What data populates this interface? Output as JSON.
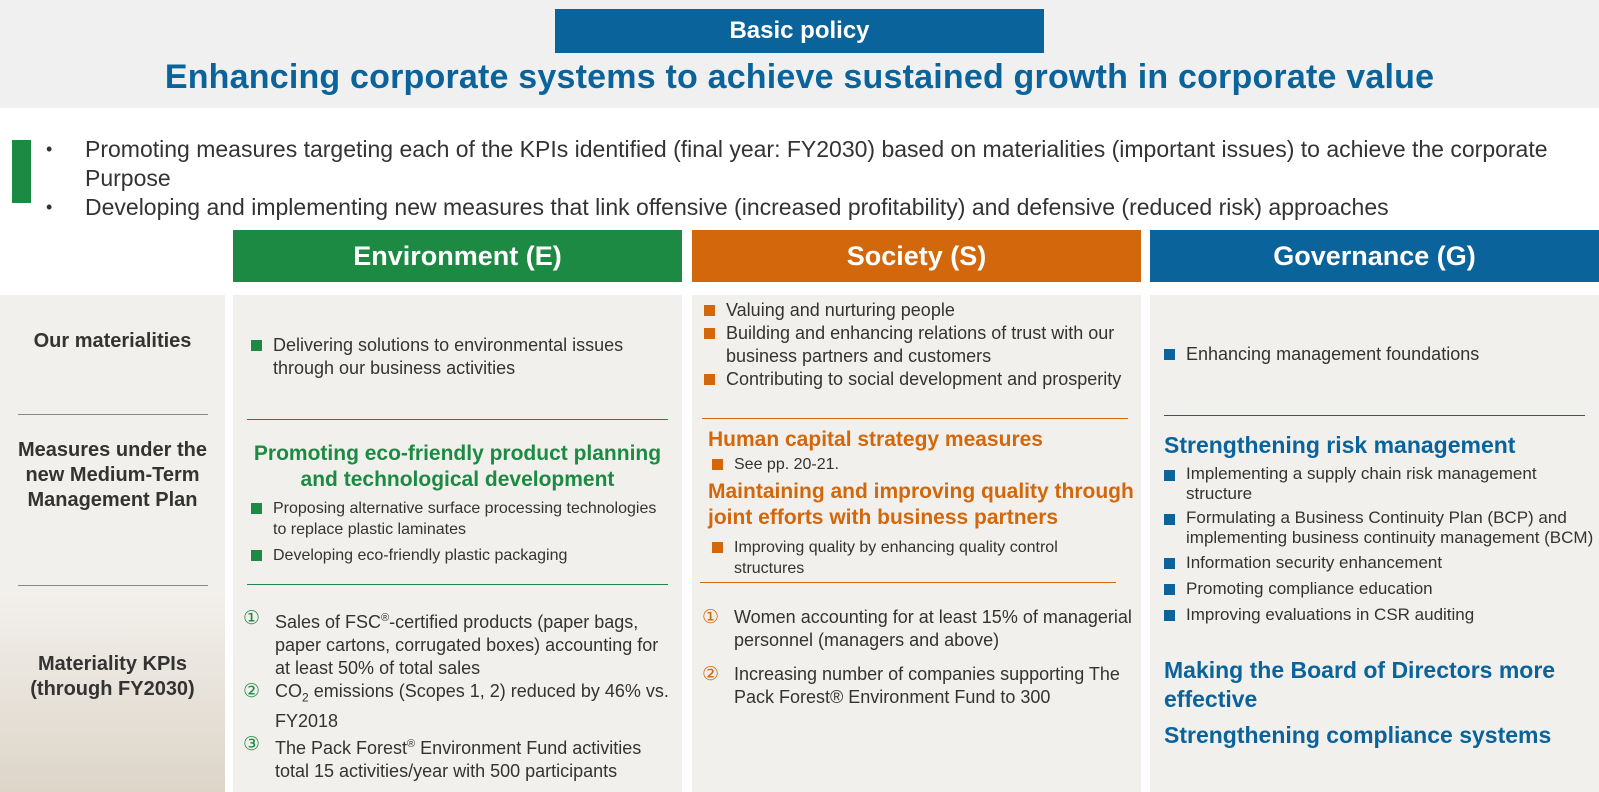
{
  "header": {
    "policy_label": "Basic policy",
    "title": "Enhancing corporate systems to achieve sustained growth in corporate value"
  },
  "intro": {
    "bullet_char": "•",
    "items": [
      "Promoting measures targeting each of the KPIs identified (final year: FY2030) based on materialities (important issues) to achieve the corporate Purpose",
      "Developing and implementing new measures that link offensive (increased profitability) and defensive (reduced risk) approaches"
    ]
  },
  "columns": {
    "environment": "Environment (E)",
    "society": "Society (S)",
    "governance": "Governance (G)"
  },
  "row_labels": {
    "materialities": "Our materialities",
    "measures": "Measures under the new Medium-Term Management Plan",
    "kpis": "Materiality KPIs (through FY2030)"
  },
  "environment": {
    "materialities": [
      "Delivering solutions to environmental issues through our business activities"
    ],
    "measures_heading": "Promoting eco-friendly product planning and technological development",
    "measures": [
      "Proposing alternative surface processing technologies to replace plastic laminates",
      "Developing eco-friendly plastic packaging"
    ],
    "kpis": [
      {
        "num": "①",
        "text_before": "Sales of FSC",
        "sup": "®",
        "text_after": "-certified products (paper bags, paper cartons, corrugated boxes) accounting for at least 50% of total sales"
      },
      {
        "num": "②",
        "text_before": "CO",
        "sub": "2",
        "text_after": " emissions (Scopes 1, 2) reduced by 46% vs. FY2018"
      },
      {
        "num": "③",
        "text_before": "The Pack Forest",
        "sup": "®",
        "text_after": " Environment Fund activities total 15 activities/year with 500 participants"
      }
    ]
  },
  "society": {
    "materialities": [
      "Valuing and nurturing people",
      "Building and enhancing relations of trust with our business partners and customers",
      "Contributing to social development and prosperity"
    ],
    "measures_heading_1": "Human capital strategy measures",
    "measures_1": [
      "See pp. 20-21."
    ],
    "measures_heading_2": "Maintaining and improving quality through joint efforts with business partners",
    "measures_2": [
      "Improving quality by enhancing quality control structures"
    ],
    "kpis": [
      {
        "num": "①",
        "text": "Women accounting for at least 15% of managerial personnel (managers and above)"
      },
      {
        "num": "②",
        "text": "Increasing number of companies supporting The Pack Forest® Environment Fund to 300"
      }
    ]
  },
  "governance": {
    "materialities": [
      "Enhancing management foundations"
    ],
    "heading_1": "Strengthening risk management",
    "measures_1": [
      "Implementing a supply chain risk management structure",
      "Formulating a Business Continuity Plan (BCP) and implementing business continuity management (BCM)",
      "Information security enhancement",
      "Promoting compliance education",
      "Improving evaluations in CSR auditing"
    ],
    "heading_2": "Making the Board of Directors more effective",
    "heading_3": "Strengthening compliance systems"
  },
  "colors": {
    "blue": "#0a639a",
    "green": "#1d8a43",
    "orange": "#d2670c",
    "panel_bg": "#f2f0ec"
  }
}
